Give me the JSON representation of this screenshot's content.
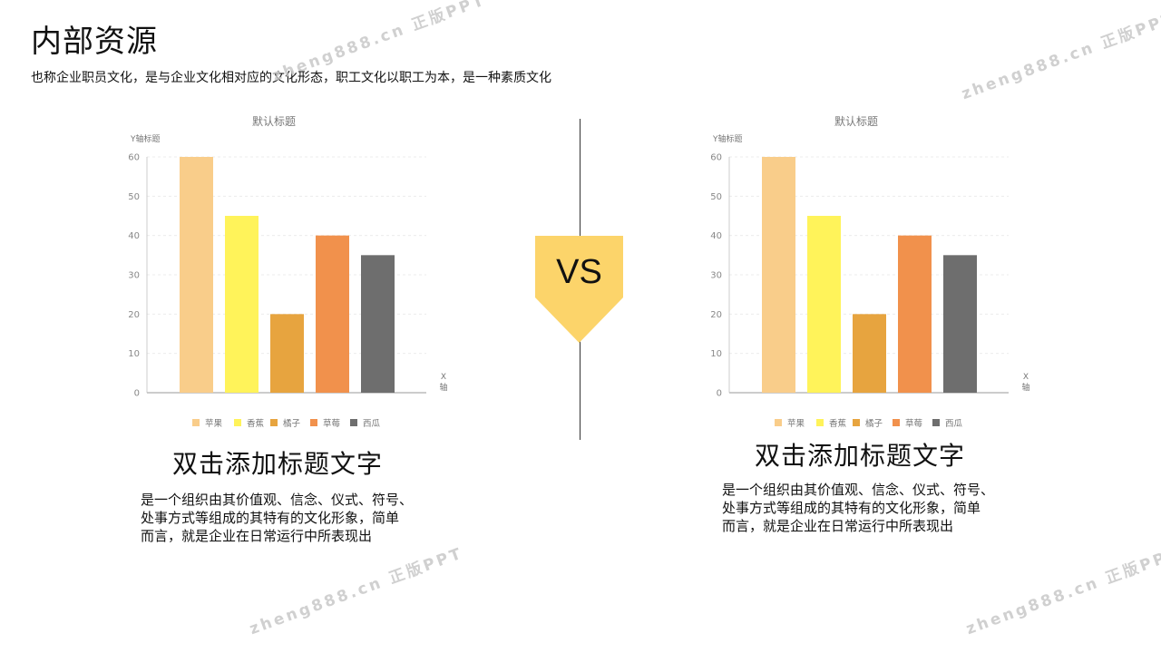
{
  "page": {
    "title": "内部资源",
    "subtitle": "也称企业职员文化，是与企业文化相对应的文化形态，职工文化以职工为本，是一种素质文化"
  },
  "vs_label": "VS",
  "colors": {
    "apple": "#f9cd8a",
    "banana": "#fff35a",
    "orange": "#e7a43f",
    "strawberry": "#f1914c",
    "watermelon": "#6e6e6e",
    "badge": "#fcd46a",
    "badge_shadow": "#f5c24a"
  },
  "chart_data": [
    {
      "type": "bar",
      "title": "默认标题",
      "ylabel": "Y轴标题",
      "xlabel": "X轴",
      "ylim": [
        0,
        60
      ],
      "yticks": [
        0,
        10,
        20,
        30,
        40,
        50,
        60
      ],
      "grid": true,
      "legend_position": "bottom",
      "categories": [
        "苹果",
        "香蕉",
        "橘子",
        "草莓",
        "西瓜"
      ],
      "values": [
        60,
        45,
        20,
        40,
        35
      ]
    },
    {
      "type": "bar",
      "title": "默认标题",
      "ylabel": "Y轴标题",
      "xlabel": "X轴",
      "ylim": [
        0,
        60
      ],
      "yticks": [
        0,
        10,
        20,
        30,
        40,
        50,
        60
      ],
      "grid": true,
      "legend_position": "bottom",
      "categories": [
        "苹果",
        "香蕉",
        "橘子",
        "草莓",
        "西瓜"
      ],
      "values": [
        60,
        45,
        20,
        40,
        35
      ]
    }
  ],
  "captions": [
    {
      "title": "双击添加标题文字",
      "body_lines": [
        "是一个组织由其价值观、信念、仪式、符号、",
        "处事方式等组成的其特有的文化形象，简单",
        "而言，就是企业在日常运行中所表现出"
      ]
    },
    {
      "title": "双击添加标题文字",
      "body_lines": [
        "是一个组织由其价值观、信念、仪式、符号、",
        "处事方式等组成的其特有的文化形象，简单",
        "而言，就是企业在日常运行中所表现出"
      ]
    }
  ],
  "watermarks": [
    "zheng888.cn 正版PPT",
    "zheng888.cn 正版PPT",
    "zheng888.cn 正版PPT",
    "zheng888.cn 正版PPT"
  ]
}
